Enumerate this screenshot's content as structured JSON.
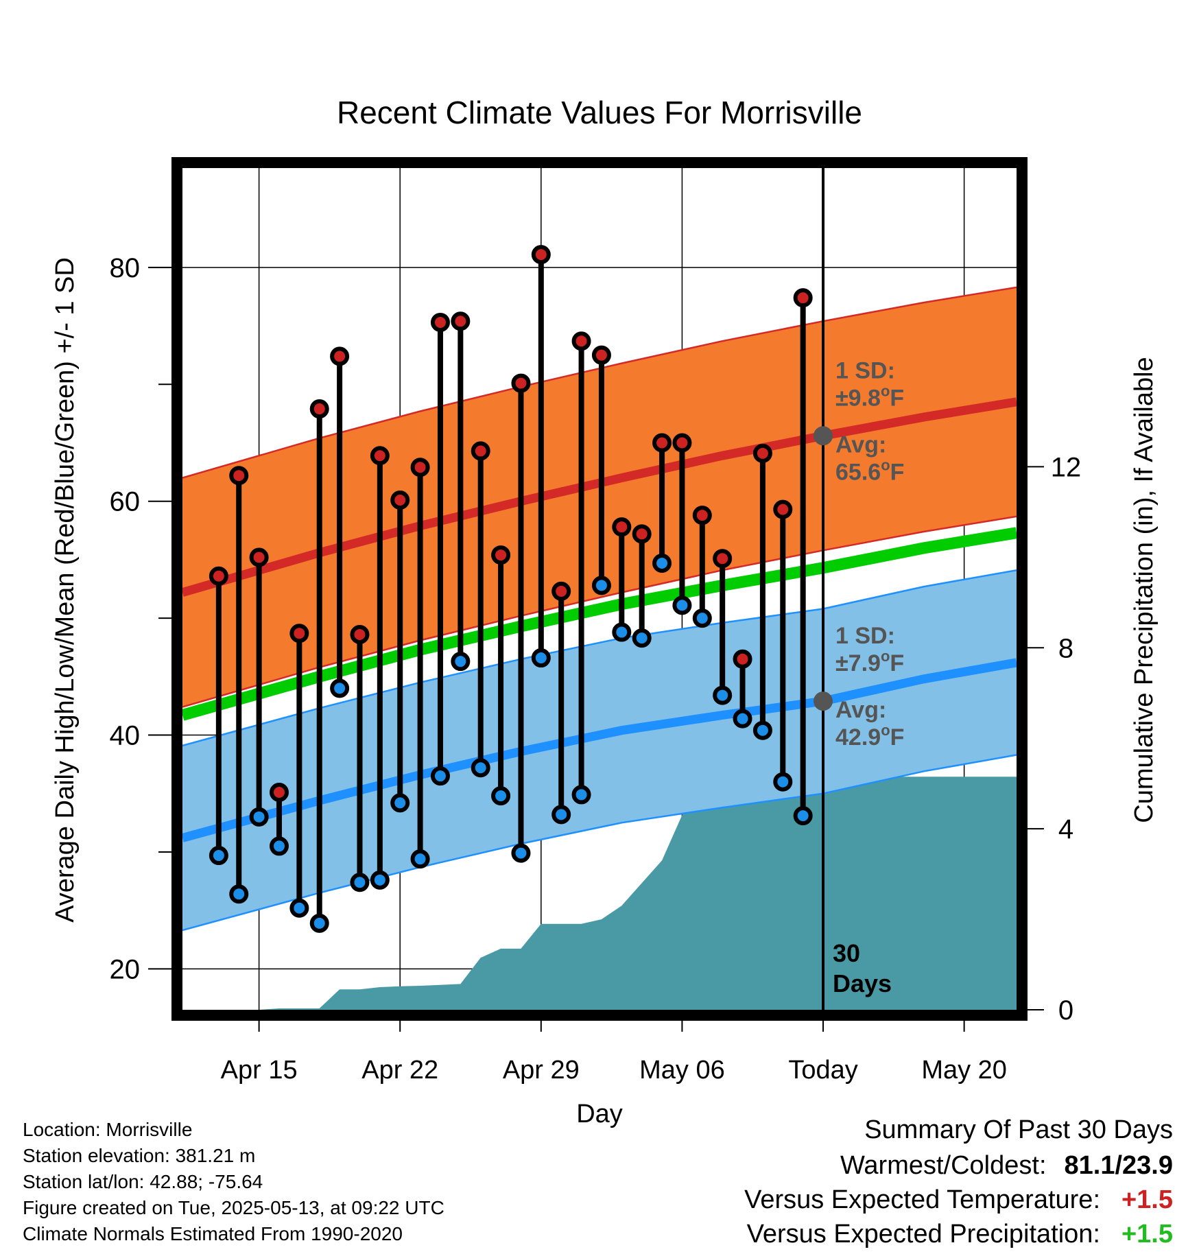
{
  "title": "Recent Climate Values For Morrisville",
  "ylabel_left": "Average Daily High/Low/Mean (Red/Blue/Green) +/- 1 SD",
  "ylabel_right": "Cumulative Precipitation (in), If Available",
  "xlabel": "Day",
  "today_label": "30\nDays",
  "annotations": {
    "high_sd": "1 SD:",
    "high_sd_value": "±9.8",
    "high_avg": "Avg:",
    "high_avg_value": "65.6",
    "low_sd": "1 SD:",
    "low_sd_value": "±7.9",
    "low_avg": "Avg:",
    "low_avg_value": "42.9",
    "unit_sup": "o",
    "unit": "F"
  },
  "footer": {
    "location": "Location: Morrisville",
    "elevation": "Station elevation: 381.21 m",
    "latlon": "Station lat/lon: 42.88; -75.64",
    "created": "Figure created on Tue, 2025-05-13, at 09:22 UTC",
    "normals": "Climate Normals Estimated From 1990-2020"
  },
  "summary": {
    "heading": "Summary Of Past 30 Days",
    "warm_cold_label": "Warmest/Coldest:",
    "warm_cold_value": "81.1/23.9",
    "temp_label": "Versus Expected Temperature:",
    "temp_value": "+1.5",
    "precip_label": "Versus Expected Precipitation:",
    "precip_value": "+1.5"
  },
  "colors": {
    "high_band": "#f47b2d",
    "high_line": "#d42a27",
    "low_band": "#82c0e8",
    "low_line": "#1e90ff",
    "mean_line": "#00cc00",
    "precip": "#4a9aa5",
    "dot_high": "#cc2222",
    "dot_low": "#1a8ee8",
    "avg_marker": "#555555",
    "annotation_text": "#555555",
    "temp_value": "#cc2222",
    "precip_value": "#22bb22"
  },
  "chart_data": {
    "type": "line",
    "x_tick_labels": [
      "Apr 15",
      "Apr 22",
      "Apr 29",
      "May 06",
      "Today",
      "May 20"
    ],
    "x_tick_days": [
      -28,
      -21,
      -14,
      -7,
      0,
      7
    ],
    "x_range_days": [
      -31.8,
      9.6
    ],
    "y_left_range": [
      16.5,
      88.5
    ],
    "y_left_ticks": [
      20,
      40,
      60,
      80
    ],
    "y_left_minor_ticks": [
      30,
      50,
      70
    ],
    "y_right_range": [
      0,
      18.6
    ],
    "y_right_ticks": [
      0,
      4,
      8,
      12
    ],
    "grid": true,
    "days_offset": [
      -30,
      -29,
      -28,
      -27,
      -26,
      -25,
      -24,
      -23,
      -22,
      -21,
      -20,
      -19,
      -18,
      -17,
      -16,
      -15,
      -14,
      -13,
      -12,
      -11,
      -10,
      -9,
      -8,
      -7,
      -6,
      -5,
      -4,
      -3,
      -2,
      -1
    ],
    "daily_high": [
      53.6,
      62.2,
      55.2,
      35.1,
      48.7,
      67.9,
      72.4,
      48.6,
      63.9,
      60.1,
      62.9,
      75.3,
      75.4,
      64.3,
      55.4,
      70.1,
      81.1,
      52.3,
      73.7,
      72.5,
      57.8,
      57.2,
      65.0,
      65.0,
      58.8,
      55.1,
      46.5,
      64.1,
      59.3,
      77.4
    ],
    "daily_low": [
      29.7,
      26.4,
      33.0,
      30.5,
      25.2,
      23.9,
      44.0,
      27.4,
      27.6,
      34.2,
      29.4,
      36.5,
      46.3,
      37.2,
      34.8,
      29.9,
      46.6,
      33.2,
      34.9,
      52.8,
      48.8,
      48.3,
      54.7,
      51.1,
      50.0,
      43.4,
      41.4,
      40.4,
      36.0,
      33.1
    ],
    "normal_days": [
      -31.8,
      -25,
      -20,
      -15,
      -10,
      -5,
      0,
      5,
      9.6
    ],
    "normal_high": [
      52.2,
      55.6,
      57.9,
      60.0,
      62.0,
      63.9,
      65.6,
      67.2,
      68.5
    ],
    "normal_high_sd": 9.8,
    "normal_low": [
      31.2,
      34.4,
      36.6,
      38.6,
      40.4,
      41.7,
      42.9,
      44.8,
      46.2
    ],
    "normal_low_sd": 7.9,
    "normal_mean": [
      41.7,
      45.0,
      47.3,
      49.3,
      51.2,
      52.8,
      54.3,
      56.0,
      57.3
    ],
    "today_high_avg": 65.6,
    "today_low_avg": 42.9,
    "precip_days": [
      -31.8,
      -30,
      -29,
      -28,
      -27,
      -26,
      -25,
      -24,
      -23,
      -22,
      -21,
      -20,
      -19,
      -18,
      -17,
      -16,
      -15,
      -14,
      -13,
      -12,
      -11,
      -10,
      -9,
      -8,
      -7,
      -6,
      -5,
      -4,
      -3,
      -2,
      -1,
      0,
      9.6
    ],
    "precip_cumulative": [
      0,
      0,
      0,
      0,
      0.03,
      0.03,
      0.03,
      0.45,
      0.45,
      0.5,
      0.52,
      0.53,
      0.55,
      0.57,
      1.15,
      1.35,
      1.35,
      1.9,
      1.9,
      1.9,
      2.0,
      2.3,
      2.8,
      3.3,
      4.3,
      4.6,
      4.6,
      5.15,
      5.15,
      5.15,
      5.15,
      5.15,
      5.15
    ]
  }
}
